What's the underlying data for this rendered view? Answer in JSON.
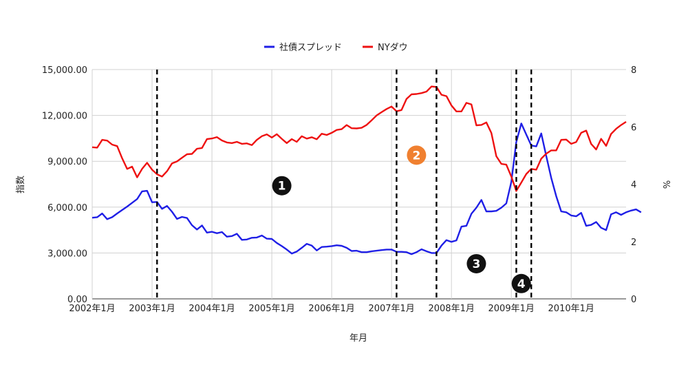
{
  "chart_data": {
    "type": "line",
    "xlabel": "年月",
    "ylabel_left": "指数",
    "ylabel_right": "%",
    "x_ticks": [
      "2002年1月",
      "2003年1月",
      "2004年1月",
      "2005年1月",
      "2006年1月",
      "2007年1月",
      "2008年1月",
      "2009年1月",
      "2010年1月"
    ],
    "y_left": {
      "min": 0,
      "max": 15000,
      "ticks": [
        "0.00",
        "3,000.00",
        "6,000.00",
        "9,000.00",
        "12,000.00",
        "15,000.00"
      ]
    },
    "y_right": {
      "min": 0,
      "max": 8,
      "ticks": [
        "0",
        "2",
        "4",
        "6",
        "8"
      ]
    },
    "grid": true,
    "legend_position": "top",
    "series": [
      {
        "name": "社債スプレッド",
        "axis": "right",
        "color": "#1f1fe6",
        "x_start": "2002-01",
        "values": [
          2.83,
          2.85,
          2.98,
          2.78,
          2.85,
          2.98,
          3.1,
          3.22,
          3.35,
          3.48,
          3.75,
          3.77,
          3.37,
          3.38,
          3.14,
          3.24,
          3.04,
          2.79,
          2.86,
          2.82,
          2.57,
          2.42,
          2.56,
          2.31,
          2.34,
          2.29,
          2.33,
          2.17,
          2.19,
          2.27,
          2.06,
          2.07,
          2.13,
          2.14,
          2.21,
          2.1,
          2.09,
          1.95,
          1.84,
          1.72,
          1.58,
          1.65,
          1.78,
          1.92,
          1.86,
          1.69,
          1.81,
          1.82,
          1.84,
          1.87,
          1.85,
          1.78,
          1.67,
          1.68,
          1.63,
          1.63,
          1.66,
          1.68,
          1.7,
          1.72,
          1.72,
          1.64,
          1.64,
          1.63,
          1.56,
          1.63,
          1.73,
          1.66,
          1.6,
          1.6,
          1.86,
          2.05,
          1.99,
          2.04,
          2.52,
          2.55,
          2.97,
          3.18,
          3.45,
          3.05,
          3.05,
          3.07,
          3.18,
          3.33,
          4.08,
          5.47,
          6.12,
          5.73,
          5.35,
          5.32,
          5.77,
          4.98,
          4.22,
          3.58,
          3.05,
          3.02,
          2.91,
          2.88,
          3.0,
          2.55,
          2.58,
          2.68,
          2.48,
          2.4,
          2.95,
          3.02,
          2.93,
          3.02,
          3.08,
          3.12,
          3.02
        ]
      },
      {
        "name": "NYダウ",
        "axis": "left",
        "color": "#ee1111",
        "x_start": "2002-01",
        "values": [
          9920,
          9890,
          10400,
          10350,
          10090,
          9990,
          9200,
          8500,
          8650,
          7950,
          8500,
          8900,
          8450,
          8150,
          8000,
          8350,
          8860,
          8990,
          9230,
          9460,
          9480,
          9820,
          9870,
          10450,
          10490,
          10580,
          10360,
          10230,
          10190,
          10270,
          10140,
          10170,
          10060,
          10400,
          10640,
          10760,
          10550,
          10770,
          10470,
          10190,
          10450,
          10270,
          10640,
          10480,
          10570,
          10440,
          10800,
          10720,
          10860,
          11050,
          11100,
          11370,
          11160,
          11150,
          11190,
          11380,
          11680,
          12000,
          12210,
          12420,
          12580,
          12270,
          12350,
          13080,
          13380,
          13400,
          13460,
          13560,
          13890,
          13860,
          13350,
          13260,
          12650,
          12260,
          12260,
          12820,
          12720,
          11350,
          11380,
          11540,
          10850,
          9330,
          8830,
          8780,
          8000,
          7060,
          7610,
          8170,
          8500,
          8450,
          9170,
          9500,
          9710,
          9710,
          10400,
          10420,
          10140,
          10260,
          10860,
          11010,
          10140,
          9770,
          10470,
          10010,
          10790,
          11120,
          11370,
          11580
        ]
      }
    ],
    "vertical_markers_x": [
      "2003-02",
      "2007-02",
      "2007-10",
      "2009-02",
      "2009-05"
    ],
    "annotations": [
      {
        "label": "1",
        "color": "#111111",
        "x": "2005-03",
        "y_left": 7400
      },
      {
        "label": "2",
        "color": "#f08030",
        "x": "2007-06",
        "y_left": 9400
      },
      {
        "label": "3",
        "color": "#111111",
        "x": "2008-06",
        "y_left": 2300
      },
      {
        "label": "4",
        "color": "#111111",
        "x": "2009-03",
        "y_left": 1000
      }
    ]
  }
}
